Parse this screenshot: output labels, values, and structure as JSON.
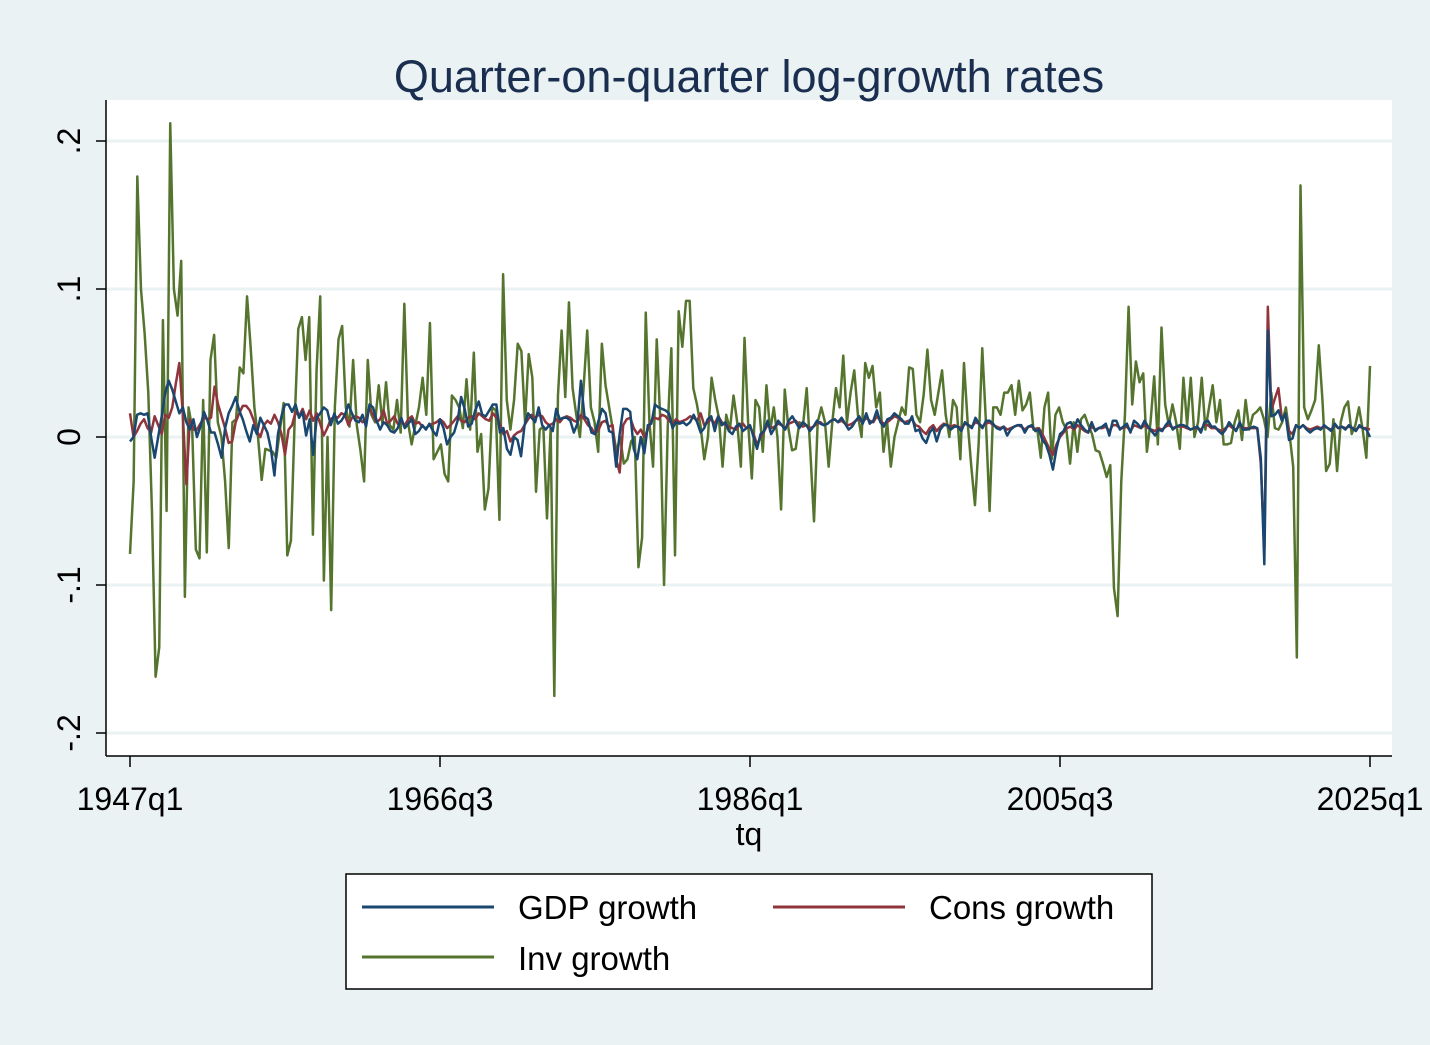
{
  "chart_data": {
    "type": "line",
    "title": "Quarter-on-quarter log-growth rates",
    "xlabel": "tq",
    "ylabel": "",
    "x_start": "1947q1",
    "x_end": "2025q1",
    "x_ticks": [
      "1947q1",
      "1966q3",
      "1986q1",
      "2005q3",
      "2025q1"
    ],
    "y_ticks": [
      -0.2,
      -0.1,
      0,
      0.1,
      0.2
    ],
    "y_tick_labels": [
      "-.2",
      "-.1",
      "0",
      ".1",
      ".2"
    ],
    "ylim": [
      -0.215,
      0.228
    ],
    "grid": true,
    "legend_position": "bottom",
    "colors": {
      "background": "#eaf2f3",
      "plot_area": "#ffffff",
      "gridline": "#eaf2f3",
      "title": "#1a2e50"
    },
    "series": [
      {
        "name": "GDP growth",
        "color": "#1a476f",
        "values": [
          -0.003,
          0.0,
          0.015,
          0.016,
          0.015,
          0.016,
          0.0,
          -0.014,
          0.0,
          0.014,
          0.03,
          0.038,
          0.032,
          0.024,
          0.016,
          0.02,
          0.01,
          0.005,
          0.012,
          0.0,
          0.007,
          0.017,
          0.011,
          0.003,
          0.003,
          -0.005,
          -0.014,
          0.006,
          0.016,
          0.021,
          0.027,
          0.018,
          0.012,
          0.004,
          -0.003,
          0.008,
          0.002,
          0.013,
          0.008,
          0.003,
          -0.008,
          -0.026,
          0.002,
          0.014,
          0.022,
          0.022,
          0.017,
          0.022,
          0.013,
          0.017,
          0.001,
          0.012,
          -0.012,
          0.013,
          0.016,
          0.02,
          0.018,
          0.008,
          0.016,
          0.009,
          0.011,
          0.015,
          0.022,
          0.016,
          0.011,
          0.01,
          0.015,
          0.007,
          0.022,
          0.02,
          0.011,
          0.005,
          0.01,
          0.008,
          0.004,
          0.003,
          0.006,
          0.013,
          0.006,
          0.009,
          0.012,
          0.002,
          0.004,
          0.008,
          0.005,
          0.009,
          0.004,
          0.001,
          0.012,
          0.006,
          -0.005,
          0.0,
          0.003,
          0.011,
          0.027,
          0.019,
          0.007,
          0.009,
          0.018,
          0.024,
          0.015,
          0.014,
          0.018,
          0.022,
          0.022,
          0.003,
          0.006,
          -0.008,
          -0.012,
          0.0,
          -0.002,
          -0.013,
          0.008,
          0.016,
          0.013,
          0.01,
          0.02,
          0.008,
          0.005,
          0.008,
          0.004,
          0.019,
          0.012,
          0.013,
          0.013,
          0.011,
          0.003,
          0.009,
          0.038,
          0.014,
          0.012,
          0.003,
          0.002,
          0.011,
          0.019,
          0.016,
          0.004,
          0.003,
          -0.02,
          0.002,
          0.019,
          0.019,
          0.017,
          -0.008,
          -0.015,
          0.0,
          -0.011,
          0.008,
          0.009,
          0.022,
          0.02,
          0.019,
          0.018,
          0.016,
          0.006,
          0.01,
          0.009,
          0.01,
          0.008,
          0.01,
          0.015,
          0.01,
          0.003,
          0.006,
          0.012,
          0.014,
          0.004,
          0.014,
          0.008,
          0.01,
          0.004,
          0.002,
          0.007,
          0.009,
          0.004,
          0.006,
          0.008,
          0.0,
          -0.008,
          0.002,
          0.004,
          0.011,
          0.002,
          0.006,
          0.011,
          0.008,
          0.005,
          0.011,
          0.014,
          0.01,
          0.006,
          0.01,
          0.008,
          0.004,
          0.007,
          0.011,
          0.009,
          0.008,
          0.009,
          0.011,
          0.012,
          0.01,
          0.013,
          0.009,
          0.005,
          0.007,
          0.011,
          0.014,
          0.009,
          0.016,
          0.009,
          0.011,
          0.018,
          0.01,
          0.007,
          0.012,
          0.013,
          0.016,
          0.014,
          0.012,
          0.009,
          0.009,
          0.014,
          0.004,
          0.005,
          -0.001,
          -0.004,
          0.003,
          0.006,
          -0.003,
          0.005,
          0.008,
          0.008,
          0.005,
          0.007,
          0.007,
          0.004,
          0.01,
          0.008,
          0.006,
          0.013,
          0.009,
          0.006,
          0.011,
          0.011,
          0.009,
          0.006,
          0.005,
          0.007,
          0.001,
          0.005,
          0.007,
          0.008,
          0.008,
          0.003,
          0.007,
          0.008,
          0.004,
          0.005,
          -0.002,
          -0.005,
          -0.012,
          -0.022,
          -0.008,
          0.002,
          0.004,
          0.009,
          0.01,
          0.006,
          0.012,
          0.008,
          0.005,
          0.003,
          0.01,
          0.004,
          0.006,
          0.007,
          0.009,
          0.001,
          0.011,
          0.011,
          0.005,
          0.007,
          0.009,
          0.003,
          0.011,
          0.009,
          0.006,
          0.011,
          0.007,
          0.004,
          0.001,
          0.005,
          0.004,
          0.008,
          0.011,
          0.005,
          0.007,
          0.008,
          0.008,
          0.007,
          0.005,
          0.006,
          0.007,
          0.003,
          0.01,
          0.011,
          0.007,
          0.007,
          0.004,
          0.002,
          0.005,
          0.01,
          0.007,
          0.004,
          0.01,
          0.005,
          0.005,
          0.006,
          0.007,
          0.006,
          -0.014,
          -0.086,
          0.072,
          0.014,
          0.015,
          0.018,
          0.011,
          0.016,
          -0.002,
          -0.001,
          0.008,
          0.006,
          0.008,
          0.005,
          0.003,
          0.005,
          0.006,
          0.005,
          0.008,
          0.006,
          0.004,
          0.009,
          0.006,
          0.007,
          0.005,
          0.008,
          0.006,
          0.004,
          0.008,
          0.006,
          0.005,
          0.0
        ]
      },
      {
        "name": "Cons growth",
        "color": "#90353b",
        "values": [
          0.016,
          0.0,
          0.004,
          0.009,
          0.012,
          0.006,
          0.003,
          0.014,
          0.008,
          0.002,
          0.015,
          0.013,
          0.02,
          0.036,
          0.05,
          0.015,
          -0.032,
          0.012,
          0.005,
          0.005,
          0.009,
          0.013,
          0.012,
          0.013,
          0.034,
          0.022,
          0.014,
          0.006,
          -0.004,
          -0.003,
          0.01,
          0.016,
          0.021,
          0.021,
          0.018,
          0.012,
          0.004,
          0.0,
          0.008,
          0.011,
          0.009,
          0.015,
          0.01,
          0.002,
          -0.012,
          0.005,
          0.008,
          0.017,
          0.014,
          0.019,
          0.012,
          0.018,
          0.011,
          0.016,
          0.009,
          0.001,
          0.006,
          0.012,
          0.014,
          0.013,
          0.016,
          0.015,
          0.008,
          0.013,
          0.014,
          0.013,
          0.01,
          0.012,
          0.019,
          0.015,
          0.01,
          0.012,
          0.018,
          0.009,
          0.011,
          0.014,
          0.009,
          0.01,
          0.008,
          0.012,
          0.014,
          0.009,
          0.01,
          0.007,
          0.006,
          0.008,
          0.009,
          0.01,
          0.012,
          0.01,
          0.006,
          0.008,
          0.011,
          0.014,
          0.011,
          0.01,
          0.013,
          0.014,
          0.012,
          0.016,
          0.014,
          0.012,
          0.011,
          0.016,
          0.013,
          0.009,
          0.002,
          0.004,
          -0.003,
          0.001,
          0.003,
          0.004,
          0.008,
          0.012,
          0.015,
          0.013,
          0.015,
          0.014,
          0.01,
          0.008,
          0.009,
          0.012,
          0.01,
          0.013,
          0.014,
          0.013,
          0.011,
          0.01,
          0.015,
          0.012,
          0.008,
          0.006,
          0.002,
          0.005,
          0.01,
          0.011,
          0.007,
          0.008,
          -0.015,
          -0.024,
          0.008,
          0.012,
          0.013,
          0.006,
          0.002,
          0.005,
          0.0,
          0.005,
          0.011,
          0.013,
          0.012,
          0.015,
          0.014,
          0.011,
          0.009,
          0.012,
          0.01,
          0.011,
          0.012,
          0.014,
          0.013,
          0.011,
          0.016,
          0.008,
          0.01,
          0.012,
          0.009,
          0.014,
          0.01,
          0.008,
          0.007,
          0.006,
          0.005,
          0.008,
          0.009,
          0.006,
          0.007,
          0.002,
          -0.005,
          0.0,
          0.004,
          0.008,
          0.006,
          0.007,
          0.009,
          0.008,
          0.006,
          0.009,
          0.01,
          0.011,
          0.008,
          0.007,
          0.008,
          0.006,
          0.007,
          0.009,
          0.01,
          0.008,
          0.009,
          0.011,
          0.012,
          0.01,
          0.011,
          0.009,
          0.008,
          0.009,
          0.011,
          0.012,
          0.01,
          0.013,
          0.011,
          0.01,
          0.014,
          0.011,
          0.009,
          0.01,
          0.012,
          0.014,
          0.013,
          0.011,
          0.01,
          0.011,
          0.012,
          0.008,
          0.007,
          0.004,
          0.002,
          0.006,
          0.008,
          0.004,
          0.007,
          0.009,
          0.008,
          0.007,
          0.008,
          0.007,
          0.006,
          0.009,
          0.008,
          0.007,
          0.01,
          0.009,
          0.007,
          0.009,
          0.01,
          0.008,
          0.007,
          0.006,
          0.007,
          0.005,
          0.006,
          0.007,
          0.008,
          0.007,
          0.005,
          0.007,
          0.007,
          0.005,
          0.006,
          0.002,
          -0.003,
          -0.008,
          -0.012,
          -0.005,
          0.0,
          0.003,
          0.006,
          0.007,
          0.005,
          0.008,
          0.006,
          0.004,
          0.003,
          0.007,
          0.005,
          0.006,
          0.006,
          0.007,
          0.004,
          0.008,
          0.008,
          0.006,
          0.006,
          0.007,
          0.004,
          0.008,
          0.007,
          0.006,
          0.008,
          0.006,
          0.005,
          0.004,
          0.006,
          0.005,
          0.007,
          0.008,
          0.006,
          0.007,
          0.007,
          0.007,
          0.006,
          0.005,
          0.006,
          0.006,
          0.005,
          0.008,
          0.008,
          0.006,
          0.006,
          0.005,
          0.004,
          0.006,
          0.008,
          0.006,
          0.005,
          0.008,
          0.006,
          0.006,
          0.006,
          0.006,
          0.006,
          -0.018,
          -0.075,
          0.088,
          0.018,
          0.026,
          0.033,
          0.012,
          0.015,
          0.004,
          0.002,
          0.008,
          0.006,
          0.008,
          0.006,
          0.005,
          0.006,
          0.007,
          0.006,
          0.007,
          0.006,
          0.005,
          0.008,
          0.006,
          0.007,
          0.006,
          0.007,
          0.006,
          0.005,
          0.007,
          0.006,
          0.006,
          0.005
        ]
      },
      {
        "name": "Inv growth",
        "color": "#55752f",
        "values": [
          -0.079,
          -0.03,
          0.176,
          0.1,
          0.07,
          0.03,
          -0.05,
          -0.162,
          -0.142,
          0.079,
          -0.05,
          0.212,
          0.1,
          0.082,
          0.119,
          -0.108,
          0.02,
          0.006,
          -0.076,
          -0.082,
          0.025,
          -0.078,
          0.052,
          0.069,
          0.01,
          0.0,
          -0.03,
          -0.075,
          0.01,
          0.012,
          0.047,
          0.043,
          0.095,
          0.06,
          0.02,
          0.0,
          -0.029,
          -0.008,
          -0.009,
          -0.01,
          -0.014,
          0.005,
          0.023,
          -0.08,
          -0.07,
          0.01,
          0.073,
          0.081,
          0.052,
          0.081,
          -0.066,
          0.045,
          0.095,
          -0.097,
          0.0,
          -0.117,
          0.02,
          0.066,
          0.075,
          0.02,
          0.007,
          0.052,
          0.008,
          -0.009,
          -0.03,
          0.052,
          0.015,
          0.01,
          0.035,
          0.009,
          0.037,
          0.008,
          0.005,
          0.025,
          0.003,
          0.09,
          0.01,
          -0.005,
          0.008,
          0.02,
          0.04,
          0.015,
          0.077,
          -0.015,
          -0.01,
          -0.005,
          -0.025,
          -0.03,
          0.028,
          0.025,
          0.02,
          0.006,
          0.039,
          0.005,
          0.057,
          -0.01,
          0.002,
          -0.049,
          -0.035,
          0.02,
          0.018,
          -0.056,
          0.11,
          0.025,
          0.005,
          0.025,
          0.063,
          0.058,
          0.01,
          0.056,
          0.04,
          -0.037,
          0.005,
          0.007,
          -0.055,
          0.006,
          -0.175,
          0.028,
          0.072,
          0.027,
          0.091,
          0.033,
          0.015,
          0.0,
          0.033,
          0.072,
          0.02,
          0.01,
          -0.01,
          0.063,
          0.035,
          0.02,
          0.005,
          -0.01,
          0.0,
          -0.018,
          -0.015,
          -0.003,
          0.0,
          -0.088,
          -0.068,
          0.084,
          0.01,
          -0.02,
          0.066,
          0.01,
          -0.1,
          0.006,
          0.06,
          -0.08,
          0.085,
          0.061,
          0.092,
          0.092,
          0.033,
          0.022,
          0.007,
          -0.015,
          0.0,
          0.04,
          0.025,
          0.013,
          -0.02,
          0.015,
          0.005,
          0.028,
          0.01,
          -0.02,
          0.067,
          0.009,
          -0.028,
          0.025,
          0.02,
          -0.01,
          0.035,
          0.004,
          0.02,
          0.0,
          -0.049,
          0.032,
          0.006,
          -0.009,
          -0.008,
          0.01,
          0.008,
          0.033,
          -0.01,
          -0.057,
          0.01,
          0.02,
          0.01,
          -0.02,
          0.01,
          0.033,
          0.02,
          0.055,
          0.01,
          0.03,
          0.045,
          0.015,
          0.0,
          0.05,
          0.04,
          0.048,
          0.02,
          0.03,
          -0.01,
          0.01,
          -0.02,
          0.0,
          0.01,
          0.02,
          0.015,
          0.047,
          0.046,
          0.015,
          0.01,
          0.029,
          0.059,
          0.025,
          0.015,
          0.03,
          0.045,
          0.015,
          0.0,
          0.025,
          0.02,
          -0.015,
          0.05,
          0.01,
          -0.02,
          -0.046,
          -0.005,
          0.06,
          0.01,
          -0.05,
          0.02,
          0.02,
          0.015,
          0.03,
          0.03,
          0.035,
          0.015,
          0.038,
          0.018,
          0.022,
          0.03,
          0.005,
          0.006,
          -0.014,
          0.02,
          0.03,
          -0.015,
          0.015,
          0.02,
          0.01,
          0.005,
          -0.018,
          0.01,
          -0.01,
          0.012,
          0.015,
          0.008,
          0.002,
          -0.009,
          -0.01,
          -0.018,
          -0.027,
          -0.019,
          -0.102,
          -0.121,
          -0.03,
          0.015,
          0.088,
          0.022,
          0.051,
          0.037,
          0.043,
          -0.01,
          0.01,
          0.041,
          -0.005,
          0.074,
          0.022,
          0.008,
          0.022,
          0.01,
          -0.008,
          0.04,
          0.008,
          0.04,
          0.0,
          0.01,
          0.04,
          0.005,
          0.02,
          0.035,
          0.01,
          0.025,
          -0.005,
          -0.005,
          -0.004,
          0.01,
          0.018,
          -0.002,
          0.025,
          0.005,
          0.015,
          0.017,
          0.02,
          0.012,
          0.0,
          0.03,
          0.006,
          0.005,
          0.01,
          0.02,
          0.002,
          -0.02,
          -0.149,
          0.17,
          0.02,
          0.012,
          0.018,
          0.025,
          0.062,
          0.025,
          -0.023,
          -0.018,
          0.012,
          -0.023,
          0.01,
          0.02,
          0.024,
          0.002,
          0.008,
          0.02,
          0.005,
          -0.014,
          0.048
        ]
      }
    ]
  }
}
